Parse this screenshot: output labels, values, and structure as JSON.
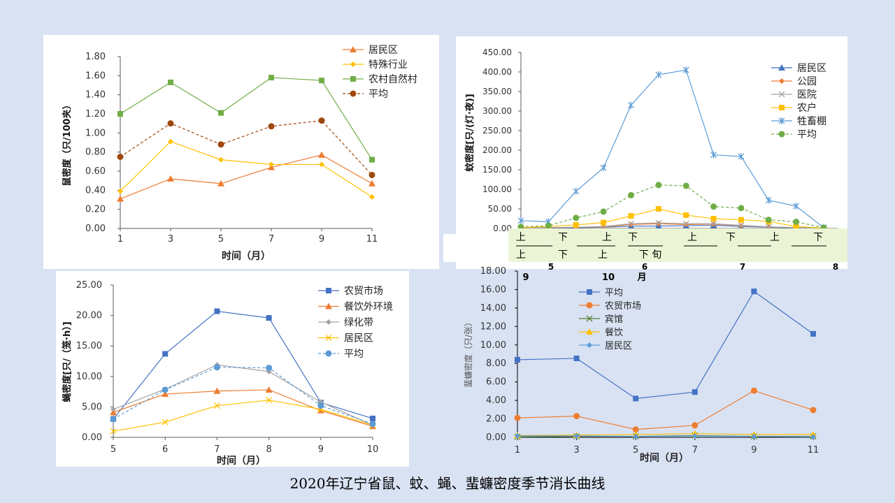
{
  "slide_title": "2020年辽宁省鼠、蚊、蝇、蜚蠊密度季节消长曲线",
  "mosquito_axis_band": {
    "row1": [
      "上",
      "下",
      "上",
      "下",
      "上",
      "下",
      "上",
      "下"
    ],
    "row2": [
      "上",
      "下",
      "上",
      "下 旬"
    ],
    "month_labels": [
      "5",
      "6",
      "7",
      "8"
    ],
    "stray_labels": [
      "9",
      "10",
      "月"
    ]
  },
  "chart_data": [
    {
      "id": "rat",
      "type": "line",
      "title": "",
      "xlabel": "时间（月）",
      "ylabel": "鼠密度（只/100夹）",
      "x": [
        1,
        3,
        5,
        7,
        9,
        11
      ],
      "xticks": [
        "1",
        "3",
        "5",
        "7",
        "9",
        "11"
      ],
      "ylim": [
        0,
        1.8
      ],
      "ystep": 0.2,
      "ydecimals": 2,
      "legend": "top-right",
      "series": [
        {
          "name": "居民区",
          "color": "#ed7d31",
          "marker": "triangle",
          "dash": false,
          "values": [
            0.31,
            0.52,
            0.47,
            0.64,
            0.77,
            0.47
          ]
        },
        {
          "name": "特殊行业",
          "color": "#ffc000",
          "marker": "diamond",
          "dash": false,
          "values": [
            0.39,
            0.91,
            0.72,
            0.67,
            0.67,
            0.33
          ]
        },
        {
          "name": "农村自然村",
          "color": "#70ad47",
          "marker": "square",
          "dash": false,
          "values": [
            1.2,
            1.53,
            1.21,
            1.58,
            1.55,
            0.72
          ]
        },
        {
          "name": "平均",
          "color": "#9e480e",
          "marker": "circle",
          "dash": true,
          "values": [
            0.75,
            1.1,
            0.88,
            1.07,
            1.13,
            0.56
          ]
        }
      ]
    },
    {
      "id": "mosquito",
      "type": "line",
      "title": "",
      "xlabel": "",
      "ylabel": "蚊密度[只/(灯·夜)]",
      "x": [
        1,
        2,
        3,
        4,
        5,
        6,
        7,
        8,
        9,
        10,
        11,
        12
      ],
      "xticks": [],
      "ylim": [
        0,
        450
      ],
      "ystep": 50,
      "ydecimals": 2,
      "legend": "top-right",
      "series": [
        {
          "name": "居民区",
          "color": "#4472c4",
          "marker": "triangle",
          "dash": false,
          "values": [
            0,
            1,
            2,
            3,
            6,
            6,
            7,
            8,
            5,
            3,
            1,
            0
          ]
        },
        {
          "name": "公园",
          "color": "#ed7d31",
          "marker": "diamond",
          "dash": false,
          "values": [
            1,
            2,
            3,
            4,
            10,
            12,
            10,
            11,
            7,
            4,
            2,
            1
          ]
        },
        {
          "name": "医院",
          "color": "#a5a5a5",
          "marker": "x",
          "dash": false,
          "values": [
            1,
            2,
            3,
            5,
            12,
            14,
            12,
            12,
            8,
            4,
            2,
            1
          ]
        },
        {
          "name": "农户",
          "color": "#ffc000",
          "marker": "square",
          "dash": false,
          "values": [
            2,
            5,
            9,
            15,
            32,
            50,
            34,
            25,
            22,
            18,
            5,
            1
          ]
        },
        {
          "name": "牲畜棚",
          "color": "#5b9bd5",
          "marker": "star",
          "dash": false,
          "values": [
            20,
            17,
            95,
            155,
            315,
            393,
            405,
            188,
            184,
            72,
            57,
            2
          ]
        },
        {
          "name": "平均",
          "color": "#70ad47",
          "marker": "circle",
          "dash": true,
          "values": [
            4,
            7,
            27,
            43,
            85,
            111,
            109,
            56,
            52,
            22,
            17,
            2
          ]
        }
      ]
    },
    {
      "id": "fly",
      "type": "line",
      "title": "",
      "xlabel": "时间（月）",
      "ylabel": "蝇密度[只/（笼·h）]",
      "x": [
        5,
        6,
        7,
        8,
        9,
        10
      ],
      "xticks": [
        "5",
        "6",
        "7",
        "8",
        "9",
        "10"
      ],
      "ylim": [
        0,
        25
      ],
      "ystep": 5,
      "ydecimals": 2,
      "legend": "top-right",
      "series": [
        {
          "name": "农贸市场",
          "color": "#4472c4",
          "marker": "square",
          "dash": false,
          "values": [
            3.0,
            13.7,
            20.7,
            19.6,
            5.7,
            3.1
          ]
        },
        {
          "name": "餐饮外环境",
          "color": "#ed7d31",
          "marker": "triangle",
          "dash": false,
          "values": [
            4.1,
            7.1,
            7.6,
            7.8,
            4.4,
            1.8
          ]
        },
        {
          "name": "绿化带",
          "color": "#a5a5a5",
          "marker": "diamond",
          "dash": false,
          "values": [
            4.6,
            7.9,
            11.9,
            10.8,
            5.8,
            2.0
          ]
        },
        {
          "name": "居民区",
          "color": "#ffc000",
          "marker": "x",
          "dash": false,
          "values": [
            1.0,
            2.5,
            5.2,
            6.1,
            4.6,
            2.0
          ]
        },
        {
          "name": "平均",
          "color": "#5b9bd5",
          "marker": "circle",
          "dash": true,
          "values": [
            3.0,
            7.8,
            11.5,
            11.4,
            5.2,
            2.2
          ]
        }
      ]
    },
    {
      "id": "cockroach",
      "type": "line",
      "title": "",
      "xlabel": "时间（月）",
      "ylabel": "蜚蠊密度（只/张）",
      "x": [
        1,
        3,
        5,
        7,
        9,
        11
      ],
      "xticks": [
        "1",
        "3",
        "5",
        "7",
        "9",
        "11"
      ],
      "ylim": [
        0,
        18
      ],
      "ystep": 2,
      "ydecimals": 2,
      "legend": "top-left",
      "series": [
        {
          "name": "平均",
          "color": "#4472c4",
          "marker": "square",
          "dash": false,
          "values": [
            8.4,
            8.55,
            4.2,
            4.9,
            15.8,
            11.2
          ]
        },
        {
          "name": "农贸市场",
          "color": "#ed7d31",
          "marker": "circle",
          "dash": false,
          "values": [
            2.1,
            2.3,
            0.85,
            1.3,
            5.05,
            2.95
          ]
        },
        {
          "name": "宾馆",
          "color": "#548235",
          "marker": "x",
          "dash": false,
          "values": [
            0.05,
            0.1,
            0.1,
            0.2,
            0.1,
            0.1
          ]
        },
        {
          "name": "餐饮",
          "color": "#ffc000",
          "marker": "triangle",
          "dash": false,
          "values": [
            0.2,
            0.25,
            0.3,
            0.4,
            0.3,
            0.3
          ]
        },
        {
          "name": "居民区",
          "color": "#5b9bd5",
          "marker": "diamond",
          "dash": false,
          "values": [
            0.15,
            0.15,
            0.1,
            0.15,
            0.1,
            0.05
          ]
        }
      ]
    }
  ]
}
